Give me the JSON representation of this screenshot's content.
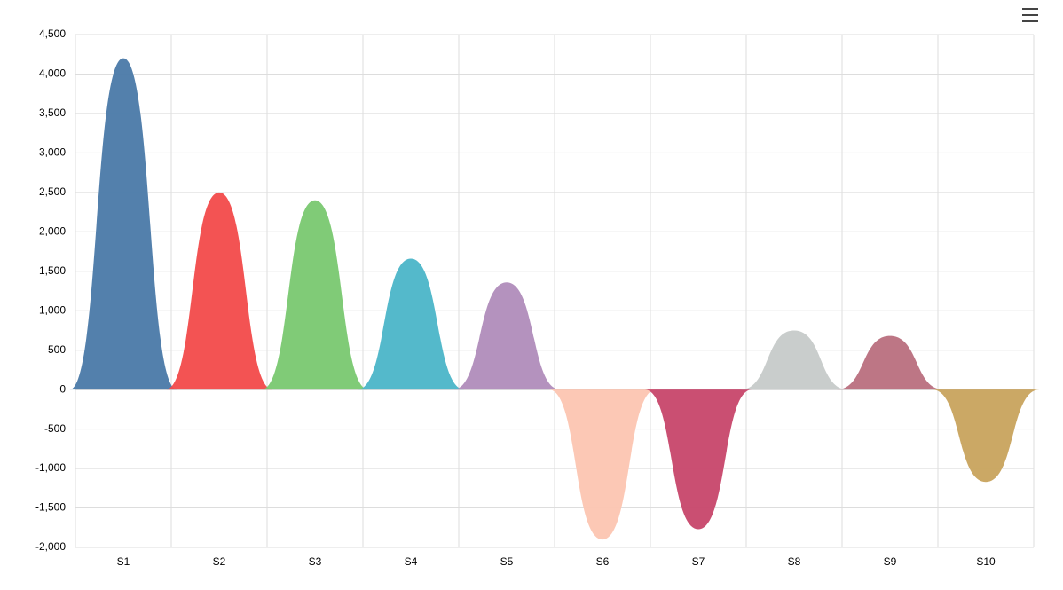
{
  "chart_data": {
    "type": "bell",
    "categories": [
      "S1",
      "S2",
      "S3",
      "S4",
      "S5",
      "S6",
      "S7",
      "S8",
      "S9",
      "S10"
    ],
    "values": [
      4200,
      2500,
      2400,
      1660,
      1360,
      -1900,
      -1770,
      750,
      680,
      -1170
    ],
    "colors": [
      "#4a79a8",
      "#f24a4a",
      "#79c870",
      "#4bb5c8",
      "#b08cbb",
      "#fcc5b1",
      "#c7466a",
      "#c6cac9",
      "#b96f7e",
      "#c8a35d"
    ],
    "ylim": [
      -2000,
      4500
    ],
    "yticks": [
      {
        "value": -2000,
        "label": "-2,000"
      },
      {
        "value": -1500,
        "label": "-1,500"
      },
      {
        "value": -1000,
        "label": "-1,000"
      },
      -500,
      0,
      500,
      {
        "value": 1000,
        "label": "1,000"
      },
      {
        "value": 1500,
        "label": "1,500"
      },
      {
        "value": 2000,
        "label": "2,000"
      },
      {
        "value": 2500,
        "label": "2,500"
      },
      {
        "value": 3000,
        "label": "3,000"
      },
      {
        "value": 3500,
        "label": "3,500"
      },
      {
        "value": 4000,
        "label": "4,000"
      },
      {
        "value": 4500,
        "label": "4,500"
      }
    ],
    "grid": true
  }
}
